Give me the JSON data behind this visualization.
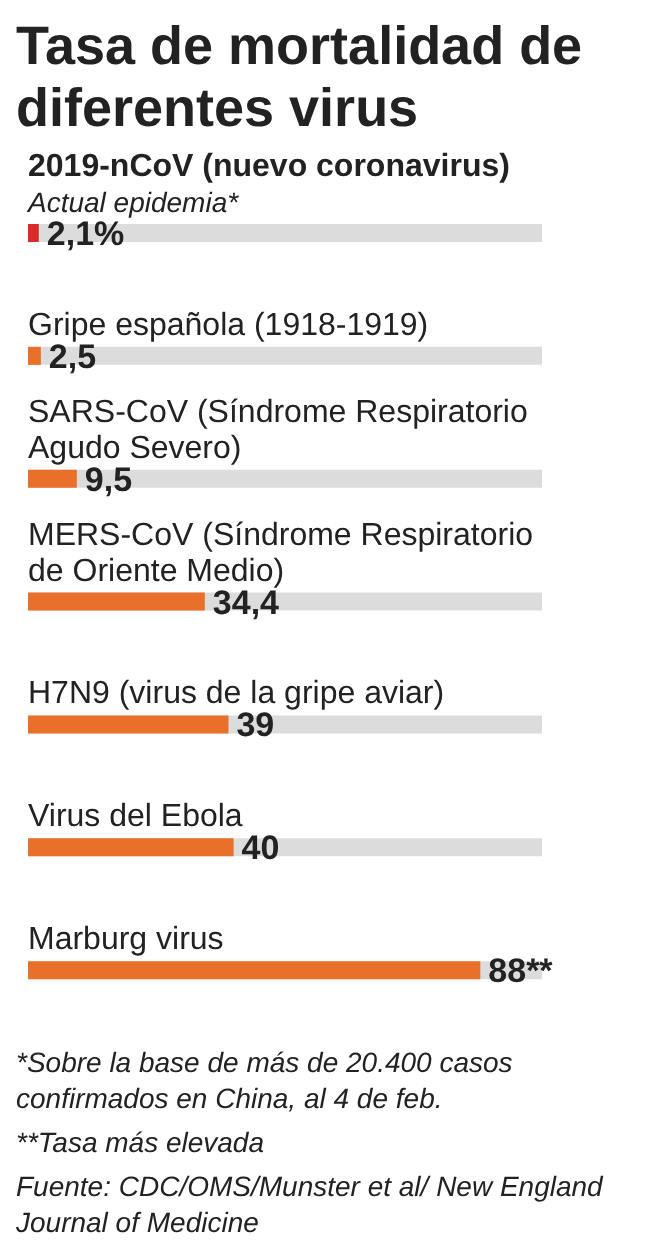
{
  "chart_data": {
    "type": "bar",
    "orientation": "horizontal",
    "title": "Tasa de mortalidad de diferentes virus",
    "categories": [
      "2019-nCoV (nuevo coronavirus)",
      "Gripe española (1918-1919)",
      "SARS-CoV (Síndrome Respiratorio Agudo Severo)",
      "MERS-CoV (Síndrome Respiratorio de Oriente Medio)",
      "H7N9 (virus de la gripe aviar)",
      "Virus del Ebola",
      "Marburg virus"
    ],
    "values": [
      2.1,
      2.5,
      9.5,
      34.4,
      39,
      40,
      88
    ],
    "value_labels": [
      "2,1%",
      "2,5",
      "9,5",
      "34,4",
      "39",
      "40",
      "88**"
    ],
    "colors": [
      "#d92b2b",
      "#e8702a",
      "#e8702a",
      "#e8702a",
      "#e8702a",
      "#e8702a",
      "#e8702a"
    ],
    "xlim": [
      0,
      100
    ],
    "annotations": [
      "Actual epidemia*",
      "*Sobre la base de más de 20.400 casos confirmados en China, al 4 de feb.",
      "**Tasa más elevada",
      "Fuente: CDC/OMS/Munster et al/ New England Journal of Medicine"
    ]
  }
}
